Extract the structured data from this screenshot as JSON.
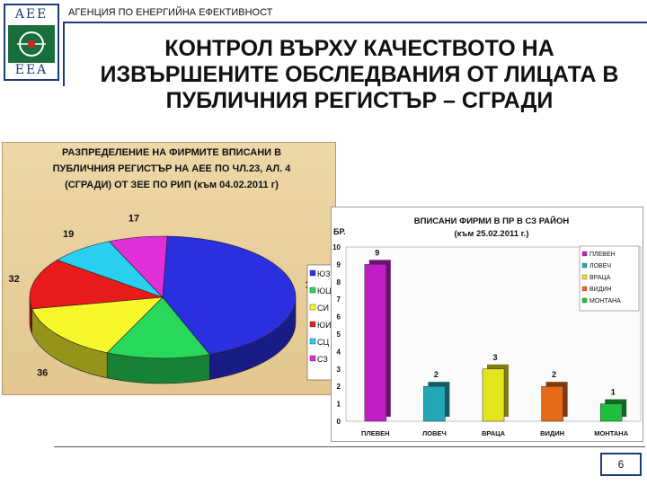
{
  "header": {
    "logo_top": "AEE",
    "logo_bottom": "EEA",
    "agency": "АГЕНЦИЯ ПО ЕНЕРГИЙНА ЕФЕКТИВНОСТ",
    "title_lines": [
      "КОНТРОЛ ВЪРХУ КАЧЕСТВОТО НА",
      "ИЗВЪРШЕНИТЕ ОБСЛЕДВАНИЯ ОТ ЛИЦАТА В",
      "ПУБЛИЧНИЯ РЕГИСТЪР – СГРАДИ"
    ]
  },
  "colors": {
    "frame": "#1a3d7a",
    "logo_green": "#1a6e3c",
    "pie_bg": "#e8cf9d"
  },
  "chart_data": [
    {
      "type": "pie",
      "title_lines": [
        "РАЗПРЕДЕЛЕНИЕ НА ФИРМИТЕ ВПИСАНИ В",
        "ПУБЛИЧНИЯ РЕГИСТЪР НА АЕЕ ПО ЧЛ.23, АЛ. 4",
        "(СГРАДИ) ОТ ЗЕЕ ПО РИП (към 04.02.2011 г)"
      ],
      "categories": [
        "ЮЗ",
        "ЮЦ",
        "СИ",
        "ЮИ",
        "СЦ",
        "СЗ"
      ],
      "values": [
        104,
        30,
        36,
        32,
        19,
        17
      ],
      "colors": [
        "#2a2fe0",
        "#27d85a",
        "#f7f72c",
        "#e91a1a",
        "#28cfee",
        "#de2fd8"
      ],
      "legend_position": "right",
      "style": "3d"
    },
    {
      "type": "bar",
      "title_lines": [
        "ВПИСАНИ ФИРМИ В ПР В СЗ РАЙОН",
        "(към 25.02.2011 г.)"
      ],
      "ylabel": "БР.",
      "categories": [
        "ПЛЕВЕН",
        "ЛОВЕЧ",
        "ВРАЦА",
        "ВИДИН",
        "МОНТАНА"
      ],
      "values": [
        9,
        2,
        3,
        2,
        1
      ],
      "colors": [
        "#c21ec8",
        "#23a7b6",
        "#e6e41f",
        "#e56a1a",
        "#1dbf3c"
      ],
      "ylim": [
        0,
        10
      ],
      "yticks": [
        "0",
        "1",
        "2",
        "3",
        "4",
        "5",
        "6",
        "7",
        "8",
        "9",
        "10"
      ],
      "legend_position": "top-right",
      "grid": false
    }
  ],
  "footer": {
    "page_number": "6"
  }
}
